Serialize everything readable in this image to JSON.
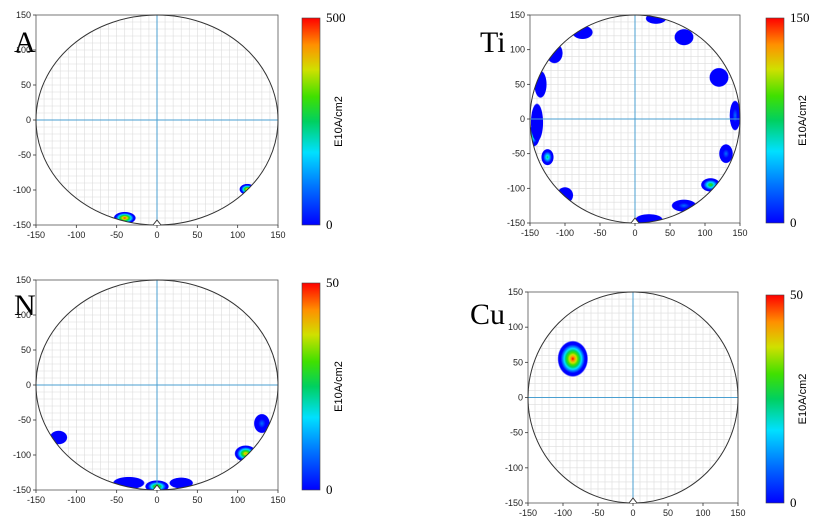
{
  "chart_data": [
    {
      "type": "heatmap",
      "element": "Al",
      "colorbar": {
        "label": "E10A/cm2",
        "min": 0,
        "max": 500
      },
      "xlim": [
        -150,
        150
      ],
      "ylim": [
        -150,
        150
      ],
      "xticks": [
        -150,
        -100,
        -50,
        0,
        50,
        100,
        150
      ],
      "yticks": [
        -150,
        -100,
        -50,
        0,
        50,
        100,
        150
      ],
      "grid": true,
      "spots": [
        {
          "x": -40,
          "y": -140,
          "rx": 14,
          "ry": 9,
          "intensity": 500
        },
        {
          "x": 112,
          "y": -99,
          "rx": 10,
          "ry": 8,
          "intensity": 480
        }
      ]
    },
    {
      "type": "heatmap",
      "element": "Ti",
      "colorbar": {
        "label": "E10A/cm2",
        "min": 0,
        "max": 150
      },
      "xlim": [
        -150,
        150
      ],
      "ylim": [
        -150,
        150
      ],
      "xticks": [
        -150,
        -100,
        -50,
        0,
        50,
        100,
        150
      ],
      "yticks": [
        -150,
        -100,
        -50,
        0,
        50,
        100,
        150
      ],
      "grid": true,
      "spots": [
        {
          "x": -145,
          "y": -25,
          "rx": 9,
          "ry": 15,
          "intensity": 80
        },
        {
          "x": -125,
          "y": -55,
          "rx": 9,
          "ry": 12,
          "intensity": 85
        },
        {
          "x": -140,
          "y": -5,
          "rx": 9,
          "ry": 28,
          "intensity": 20
        },
        {
          "x": -135,
          "y": 50,
          "rx": 9,
          "ry": 20,
          "intensity": 15
        },
        {
          "x": -115,
          "y": 95,
          "rx": 12,
          "ry": 15,
          "intensity": 15
        },
        {
          "x": -75,
          "y": 125,
          "rx": 15,
          "ry": 10,
          "intensity": 15
        },
        {
          "x": -100,
          "y": -110,
          "rx": 12,
          "ry": 12,
          "intensity": 15
        },
        {
          "x": 30,
          "y": 145,
          "rx": 15,
          "ry": 8,
          "intensity": 12
        },
        {
          "x": 70,
          "y": 118,
          "rx": 14,
          "ry": 12,
          "intensity": 12
        },
        {
          "x": 120,
          "y": 60,
          "rx": 14,
          "ry": 14,
          "intensity": 12
        },
        {
          "x": 143,
          "y": 5,
          "rx": 8,
          "ry": 22,
          "intensity": 40
        },
        {
          "x": 130,
          "y": -50,
          "rx": 10,
          "ry": 14,
          "intensity": 40
        },
        {
          "x": 108,
          "y": -95,
          "rx": 14,
          "ry": 10,
          "intensity": 100
        },
        {
          "x": 70,
          "y": -125,
          "rx": 18,
          "ry": 9,
          "intensity": 40
        },
        {
          "x": 20,
          "y": -145,
          "rx": 20,
          "ry": 8,
          "intensity": 18
        }
      ]
    },
    {
      "type": "heatmap",
      "element": "Ni",
      "colorbar": {
        "label": "E10A/cm2",
        "min": 0,
        "max": 50
      },
      "xlim": [
        -150,
        150
      ],
      "ylim": [
        -150,
        150
      ],
      "xticks": [
        -150,
        -100,
        -50,
        0,
        50,
        100,
        150
      ],
      "yticks": [
        -150,
        -100,
        -50,
        0,
        50,
        100,
        150
      ],
      "grid": true,
      "spots": [
        {
          "x": -122,
          "y": -75,
          "rx": 11,
          "ry": 10,
          "intensity": 8
        },
        {
          "x": -35,
          "y": -140,
          "rx": 20,
          "ry": 9,
          "intensity": 8
        },
        {
          "x": 0,
          "y": -145,
          "rx": 15,
          "ry": 9,
          "intensity": 38
        },
        {
          "x": 30,
          "y": -140,
          "rx": 15,
          "ry": 8,
          "intensity": 8
        },
        {
          "x": 110,
          "y": -98,
          "rx": 14,
          "ry": 12,
          "intensity": 45
        },
        {
          "x": 130,
          "y": -55,
          "rx": 10,
          "ry": 14,
          "intensity": 12
        }
      ]
    },
    {
      "type": "heatmap",
      "element": "Cu",
      "colorbar": {
        "label": "E10A/cm2",
        "min": 0,
        "max": 50
      },
      "xlim": [
        -150,
        150
      ],
      "ylim": [
        -150,
        150
      ],
      "xticks": [
        -150,
        -100,
        -50,
        0,
        50,
        100,
        150
      ],
      "yticks": [
        -150,
        -100,
        -50,
        0,
        50,
        100,
        150
      ],
      "grid": true,
      "spots": [
        {
          "x": -86,
          "y": 55,
          "rx": 22,
          "ry": 26,
          "intensity": 50
        }
      ]
    }
  ]
}
